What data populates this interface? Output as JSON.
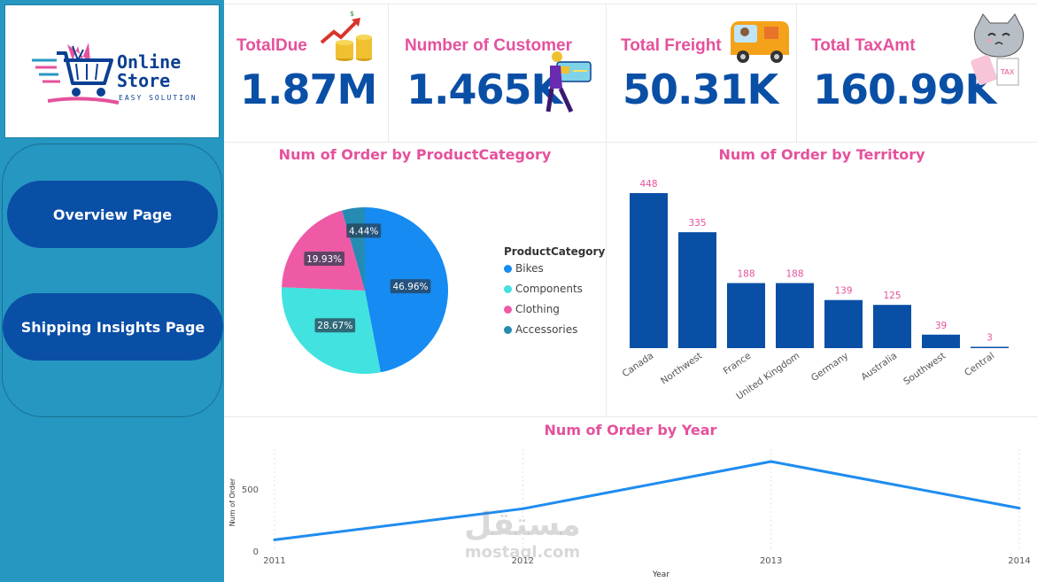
{
  "sidebar": {
    "logo": {
      "line1": "Online",
      "line2": "Store",
      "tagline": "EASY SOLUTION"
    },
    "nav": [
      {
        "label": "Overview Page"
      },
      {
        "label": "Shipping Insights Page"
      }
    ]
  },
  "kpis": [
    {
      "title": "TotalDue",
      "value": "1.87M",
      "icon": "coins-growth-icon"
    },
    {
      "title": "Number of Customer",
      "value": "1.465K",
      "icon": "customer-card-icon"
    },
    {
      "title": "Total Freight",
      "value": "50.31K",
      "icon": "delivery-van-icon"
    },
    {
      "title": "Total TaxAmt",
      "value": "160.99K",
      "icon": "cat-tax-icon"
    }
  ],
  "colors": {
    "accent_pink": "#e5519c",
    "primary_blue": "#0a4fa6",
    "sidebar": "#2597c1",
    "bikes": "#168bf2",
    "components": "#42e2e0",
    "clothing": "#ee5aa6",
    "accessories": "#268bb3",
    "line": "#1f8cf0"
  },
  "chart_data": [
    {
      "type": "pie",
      "title": "Num of Order by ProductCategory",
      "legend_title": "ProductCategory",
      "legend_position": "right",
      "slices": [
        {
          "name": "Bikes",
          "percent": 46.96,
          "label": "46.96%"
        },
        {
          "name": "Components",
          "percent": 28.67,
          "label": "28.67%"
        },
        {
          "name": "Clothing",
          "percent": 19.93,
          "label": "19.93%"
        },
        {
          "name": "Accessories",
          "percent": 4.44,
          "label": "4.44%"
        }
      ]
    },
    {
      "type": "bar",
      "title": "Num of Order by Territory",
      "categories": [
        "Canada",
        "Northwest",
        "France",
        "United Kingdom",
        "Germany",
        "Australia",
        "Southwest",
        "Central"
      ],
      "values": [
        448,
        335,
        188,
        188,
        139,
        125,
        39,
        3
      ],
      "ylim": [
        0,
        448
      ]
    },
    {
      "type": "line",
      "title": "Num of Order by Year",
      "xlabel": "Year",
      "ylabel": "Num of Order",
      "x": [
        "2011",
        "2012",
        "2013",
        "2014"
      ],
      "values": [
        90,
        340,
        720,
        345
      ],
      "yticks": [
        "0",
        "500"
      ],
      "ylim": [
        0,
        720
      ]
    }
  ],
  "watermark": {
    "arabic": "مستقل",
    "latin": "mostaql.com"
  }
}
